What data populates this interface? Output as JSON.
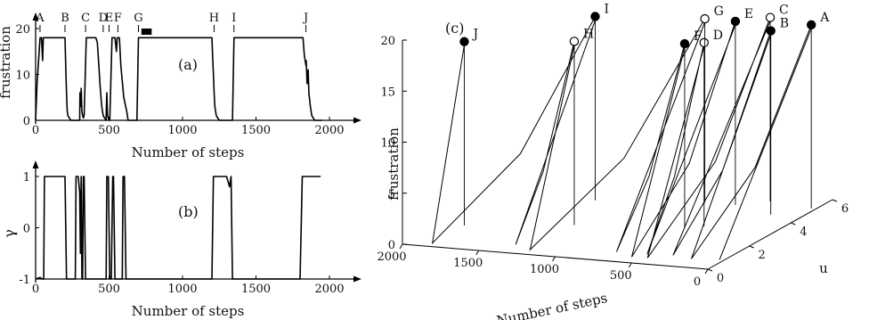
{
  "chart_data": [
    {
      "id": "a",
      "type": "line",
      "panel_label": "(a)",
      "xlabel": "Number of steps",
      "ylabel": "frustration",
      "xlim": [
        0,
        2000
      ],
      "ylim": [
        0,
        20
      ],
      "xticks": [
        "0",
        "500",
        "1000",
        "1500",
        "2000"
      ],
      "yticks": [
        "0",
        "10",
        "20"
      ],
      "event_labels": [
        {
          "name": "A",
          "x": 30
        },
        {
          "name": "B",
          "x": 200
        },
        {
          "name": "C",
          "x": 340
        },
        {
          "name": "D",
          "x": 460
        },
        {
          "name": "E",
          "x": 500
        },
        {
          "name": "F",
          "x": 560
        },
        {
          "name": "G",
          "x": 700
        },
        {
          "name": "H",
          "x": 1215
        },
        {
          "name": "I",
          "x": 1350
        },
        {
          "name": "J",
          "x": 1840
        }
      ],
      "series": [
        {
          "color": "#000000",
          "x": [
            0,
            10,
            30,
            40,
            48,
            52,
            60,
            70,
            80,
            190,
            200,
            205,
            210,
            215,
            220,
            240,
            260,
            280,
            300,
            302,
            306,
            310,
            315,
            320,
            325,
            330,
            345,
            350,
            360,
            380,
            400,
            410,
            420,
            430,
            440,
            450,
            460,
            470,
            480,
            482,
            485,
            490,
            500,
            505,
            520,
            530,
            540,
            550,
            555,
            560,
            570,
            580,
            600,
            620,
            630,
            650,
            660,
            680,
            690,
            700,
            705,
            720,
            1190,
            1200,
            1205,
            1210,
            1215,
            1220,
            1230,
            1250,
            1300,
            1320,
            1340,
            1350,
            1355,
            1380,
            1800,
            1820,
            1830,
            1840,
            1842,
            1848,
            1855,
            1860,
            1870,
            1880,
            1900,
            1950
          ],
          "y": [
            0,
            8,
            18,
            18,
            13,
            18,
            18,
            18,
            18,
            18,
            18,
            12,
            6,
            2,
            1,
            0,
            0,
            0,
            0,
            6,
            3,
            7,
            2,
            1,
            0.5,
            1,
            18,
            18,
            18,
            18,
            18,
            18,
            17,
            12,
            7,
            3,
            1,
            0.5,
            0,
            3,
            6,
            1,
            0,
            0,
            18,
            18,
            18,
            15,
            18,
            18,
            18,
            12,
            5,
            2,
            0,
            0,
            0,
            0,
            0,
            18,
            18,
            18,
            18,
            18,
            14,
            10,
            6,
            3,
            1,
            0,
            0,
            0,
            0,
            18,
            18,
            18,
            18,
            18,
            14,
            12,
            13,
            8,
            11,
            6,
            3,
            1,
            0,
            0
          ]
        }
      ]
    },
    {
      "id": "b",
      "type": "line",
      "panel_label": "(b)",
      "xlabel": "Number of steps",
      "ylabel": "γ",
      "xlim": [
        0,
        2000
      ],
      "ylim": [
        -1,
        1
      ],
      "xticks": [
        "0",
        "500",
        "1000",
        "1500",
        "2000"
      ],
      "yticks": [
        "-1",
        "0",
        "1"
      ],
      "series": [
        {
          "color": "#000000",
          "x": [
            0,
            30,
            45,
            55,
            60,
            200,
            210,
            215,
            230,
            240,
            260,
            270,
            275,
            280,
            290,
            300,
            305,
            310,
            315,
            320,
            325,
            330,
            340,
            470,
            480,
            485,
            495,
            505,
            515,
            525,
            530,
            540,
            550,
            560,
            570,
            580,
            590,
            595,
            605,
            615,
            700,
            710,
            1200,
            1210,
            1220,
            1300,
            1320,
            1330,
            1340,
            1350,
            1360,
            1800,
            1815,
            1820,
            1840,
            1900,
            1940
          ],
          "y": [
            -1,
            -0.97,
            -1,
            -1,
            1,
            1,
            -1,
            -1,
            -1,
            -1,
            -1,
            -1,
            1,
            1,
            1,
            0.7,
            -0.5,
            1,
            -1,
            -1,
            1,
            1,
            -1,
            -1,
            -1,
            1,
            1,
            -1,
            -1,
            1,
            1,
            -1,
            -1,
            -1,
            -1,
            -1,
            -1,
            1,
            1,
            -1,
            -1,
            -1,
            -1,
            1,
            1,
            1,
            0.8,
            1,
            -1,
            -1,
            -1,
            -1,
            1,
            1,
            1,
            1,
            1
          ]
        }
      ]
    },
    {
      "id": "c",
      "type": "line",
      "panel_label": "(c)",
      "projection": "3d",
      "xlabel": "Number of steps",
      "ylabel": "u",
      "zlabel": "frustration",
      "xlim": [
        0,
        2000
      ],
      "ylim": [
        0,
        6
      ],
      "zlim": [
        0,
        20
      ],
      "xticks": [
        "0",
        "500",
        "1000",
        "1500",
        "2000"
      ],
      "yticks": [
        "0",
        "2",
        "4",
        "6"
      ],
      "zticks": [
        "0",
        "5",
        "10",
        "15",
        "20"
      ],
      "marker_legend": {
        "filled": [
          "A",
          "B",
          "E",
          "F",
          "I",
          "J"
        ],
        "open": [
          "C",
          "D",
          "G",
          "H"
        ]
      },
      "points": [
        {
          "name": "A",
          "steps": 30,
          "u": 5.2,
          "frustration": 18,
          "filled": true
        },
        {
          "name": "B",
          "steps": 200,
          "u": 4.5,
          "frustration": 18,
          "filled": true
        },
        {
          "name": "C",
          "steps": 340,
          "u": 5.5,
          "frustration": 18,
          "filled": false
        },
        {
          "name": "D",
          "steps": 460,
          "u": 3.2,
          "frustration": 18,
          "filled": false
        },
        {
          "name": "E",
          "steps": 500,
          "u": 5.0,
          "frustration": 18,
          "filled": true
        },
        {
          "name": "F",
          "steps": 560,
          "u": 3.0,
          "frustration": 18,
          "filled": true
        },
        {
          "name": "G",
          "steps": 700,
          "u": 5.0,
          "frustration": 18,
          "filled": false
        },
        {
          "name": "H",
          "steps": 1215,
          "u": 2.5,
          "frustration": 18,
          "filled": false
        },
        {
          "name": "I",
          "steps": 1350,
          "u": 4.5,
          "frustration": 18,
          "filled": true
        },
        {
          "name": "J",
          "steps": 1840,
          "u": 1.8,
          "frustration": 18,
          "filled": true
        }
      ]
    }
  ]
}
